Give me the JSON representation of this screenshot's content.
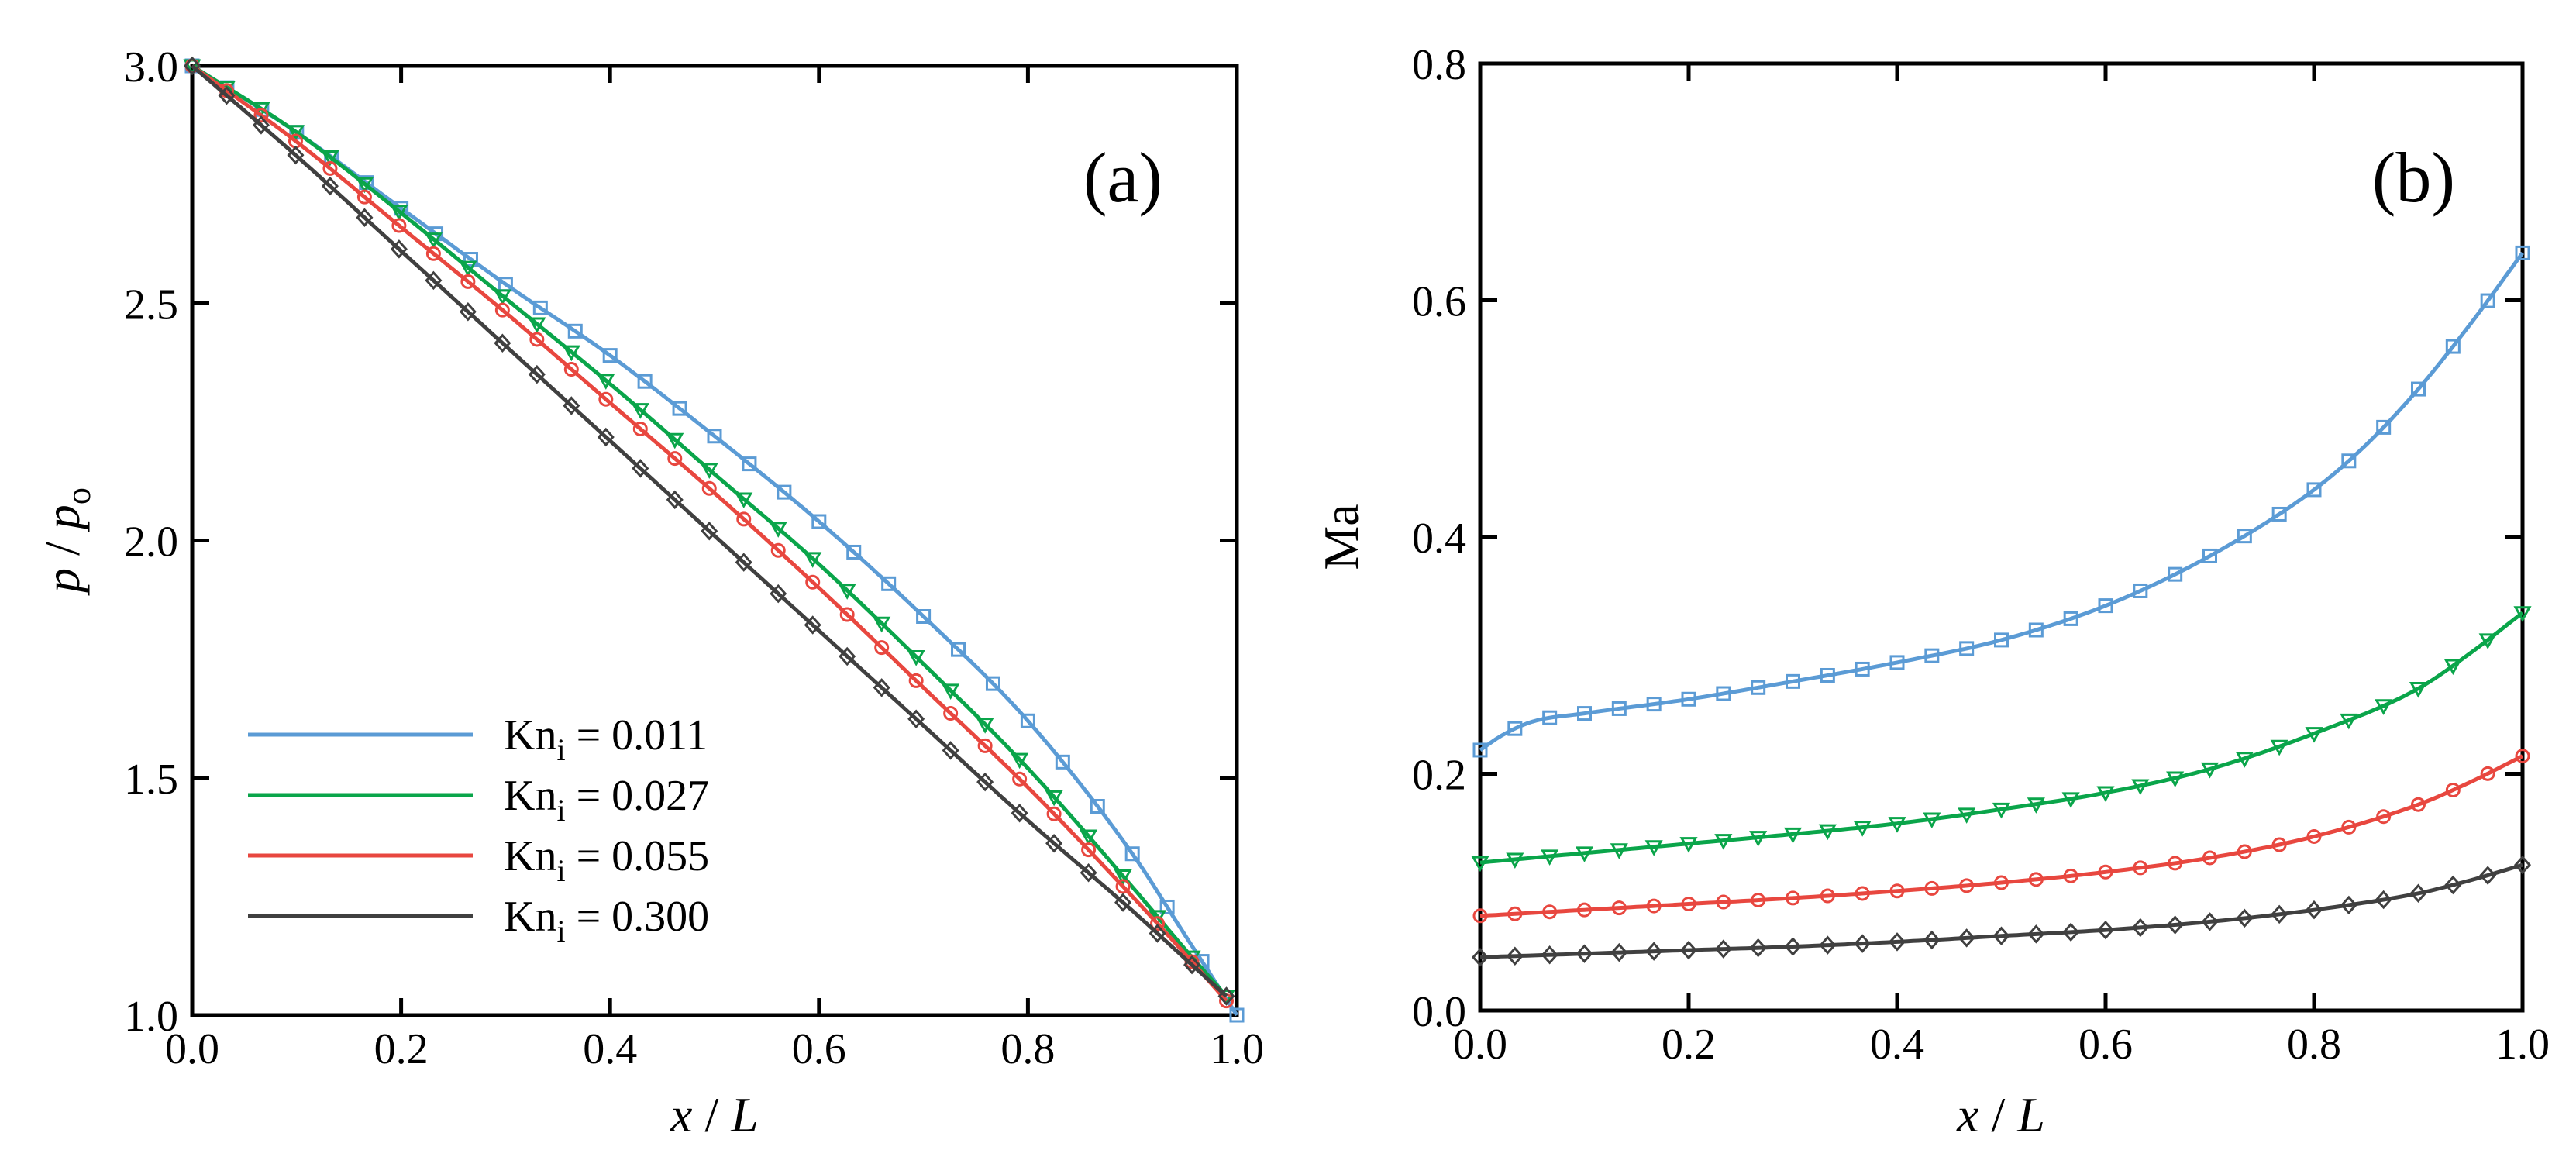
{
  "colors": {
    "kn_0011": "#5B9BD5",
    "kn_0027": "#0AA54A",
    "kn_0055": "#E8473F",
    "kn_0300": "#404040"
  },
  "chart_data": [
    {
      "type": "line",
      "panel_label": "(a)",
      "xlabel": "x / L",
      "ylabel": "p / p_o",
      "ylabel_parts": {
        "p1": "p",
        "slash": " / ",
        "p2": "p",
        "sub": "o"
      },
      "xlim": [
        0.0,
        1.0
      ],
      "ylim": [
        1.0,
        3.0
      ],
      "xticks": [
        0.0,
        0.2,
        0.4,
        0.6,
        0.8,
        1.0
      ],
      "yticks": [
        1.0,
        1.5,
        2.0,
        2.5,
        3.0
      ],
      "xtick_labels": [
        "0.0",
        "0.2",
        "0.4",
        "0.6",
        "0.8",
        "1.0"
      ],
      "ytick_labels": [
        "1.0",
        "1.5",
        "2.0",
        "2.5",
        "3.0"
      ],
      "legend": {
        "placement": "lower-left",
        "entries": [
          {
            "main": "Kn",
            "sub": "i",
            "value": " = 0.011"
          },
          {
            "main": "Kn",
            "sub": "i",
            "value": " = 0.027"
          },
          {
            "main": "Kn",
            "sub": "i",
            "value": " = 0.055"
          },
          {
            "main": "Kn",
            "sub": "i",
            "value": " = 0.300"
          }
        ]
      },
      "series": [
        {
          "name": "Kn_i = 0.011",
          "color_key": "kn_0011",
          "marker": "square",
          "x": [
            0,
            0.1,
            0.2,
            0.3,
            0.4,
            0.5,
            0.6,
            0.7,
            0.8,
            0.9,
            0.95,
            1.0
          ],
          "y": [
            3.0,
            2.86,
            2.7,
            2.54,
            2.39,
            2.22,
            2.04,
            1.84,
            1.62,
            1.34,
            1.17,
            1.0
          ]
        },
        {
          "name": "Kn_i = 0.027",
          "color_key": "kn_0027",
          "marker": "triangle-down",
          "x": [
            0,
            0.1,
            0.2,
            0.3,
            0.4,
            0.5,
            0.6,
            0.7,
            0.8,
            0.9,
            0.95,
            0.99
          ],
          "y": [
            3.0,
            2.86,
            2.69,
            2.51,
            2.33,
            2.14,
            1.95,
            1.74,
            1.52,
            1.27,
            1.14,
            1.04
          ]
        },
        {
          "name": "Kn_i = 0.055",
          "color_key": "kn_0055",
          "marker": "circle",
          "x": [
            0,
            0.1,
            0.2,
            0.3,
            0.4,
            0.5,
            0.6,
            0.7,
            0.8,
            0.9,
            0.95,
            0.99
          ],
          "y": [
            3.0,
            2.84,
            2.66,
            2.48,
            2.29,
            2.1,
            1.9,
            1.69,
            1.48,
            1.25,
            1.13,
            1.03
          ]
        },
        {
          "name": "Kn_i = 0.300",
          "color_key": "kn_0300",
          "marker": "diamond",
          "x": [
            0,
            0.1,
            0.2,
            0.3,
            0.4,
            0.5,
            0.6,
            0.7,
            0.8,
            0.9,
            0.95,
            0.99
          ],
          "y": [
            3.0,
            2.81,
            2.61,
            2.41,
            2.21,
            2.01,
            1.81,
            1.61,
            1.41,
            1.22,
            1.12,
            1.04
          ]
        }
      ]
    },
    {
      "type": "line",
      "panel_label": "(b)",
      "xlabel": "x / L",
      "ylabel": "Ma",
      "xlim": [
        0.0,
        1.0
      ],
      "ylim": [
        0.0,
        0.8
      ],
      "xticks": [
        0.0,
        0.2,
        0.4,
        0.6,
        0.8,
        1.0
      ],
      "yticks": [
        0.0,
        0.2,
        0.4,
        0.6,
        0.8
      ],
      "xtick_labels": [
        "0.0",
        "0.2",
        "0.4",
        "0.6",
        "0.8",
        "1.0"
      ],
      "ytick_labels": [
        "0.0",
        "0.2",
        "0.4",
        "0.6",
        "0.8"
      ],
      "series": [
        {
          "name": "Kn_i = 0.011",
          "color_key": "kn_0011",
          "marker": "square",
          "x": [
            0,
            0.02,
            0.05,
            0.1,
            0.2,
            0.3,
            0.4,
            0.5,
            0.6,
            0.7,
            0.8,
            0.85,
            0.9,
            0.95,
            1.0
          ],
          "y": [
            0.22,
            0.232,
            0.244,
            0.251,
            0.263,
            0.278,
            0.294,
            0.313,
            0.342,
            0.384,
            0.44,
            0.478,
            0.525,
            0.58,
            0.64
          ]
        },
        {
          "name": "Kn_i = 0.027",
          "color_key": "kn_0027",
          "marker": "triangle-down",
          "x": [
            0,
            0.1,
            0.2,
            0.3,
            0.4,
            0.5,
            0.6,
            0.7,
            0.8,
            0.9,
            0.95,
            1.0
          ],
          "y": [
            0.125,
            0.133,
            0.141,
            0.149,
            0.158,
            0.17,
            0.184,
            0.204,
            0.234,
            0.272,
            0.302,
            0.336
          ]
        },
        {
          "name": "Kn_i = 0.055",
          "color_key": "kn_0055",
          "marker": "circle",
          "x": [
            0,
            0.1,
            0.2,
            0.3,
            0.4,
            0.5,
            0.6,
            0.7,
            0.8,
            0.9,
            0.95,
            1.0
          ],
          "y": [
            0.08,
            0.085,
            0.09,
            0.095,
            0.101,
            0.108,
            0.117,
            0.129,
            0.147,
            0.174,
            0.193,
            0.215
          ]
        },
        {
          "name": "Kn_i = 0.300",
          "color_key": "kn_0300",
          "marker": "diamond",
          "x": [
            0,
            0.1,
            0.2,
            0.3,
            0.4,
            0.5,
            0.6,
            0.7,
            0.8,
            0.9,
            0.95,
            1.0
          ],
          "y": [
            0.045,
            0.048,
            0.051,
            0.054,
            0.058,
            0.063,
            0.068,
            0.075,
            0.085,
            0.099,
            0.11,
            0.123
          ]
        }
      ]
    }
  ]
}
